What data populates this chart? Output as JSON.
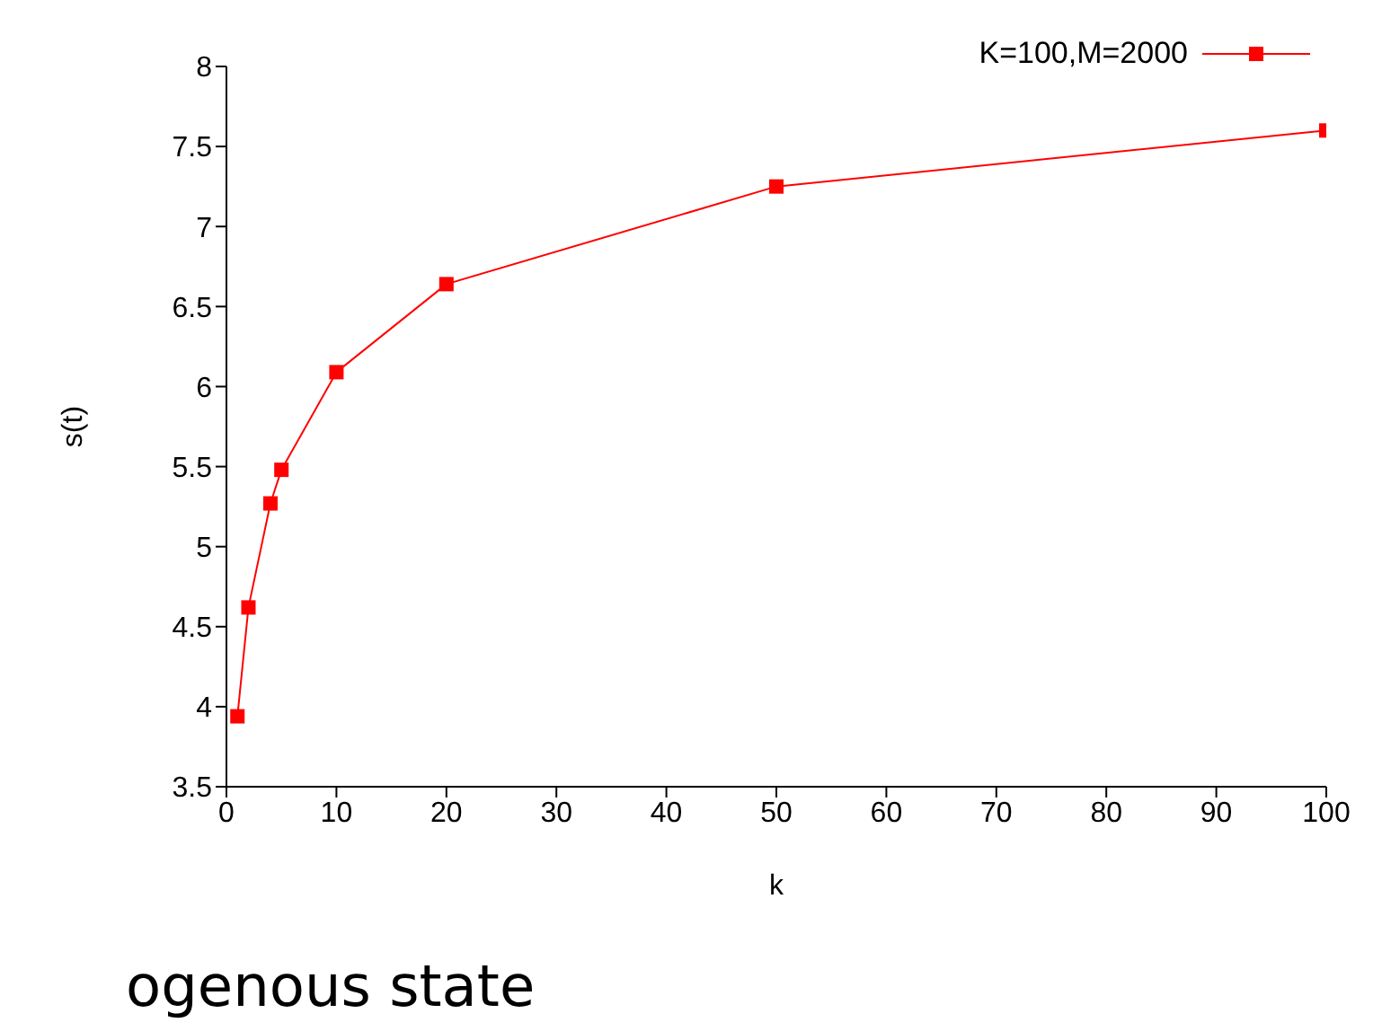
{
  "chart_data": {
    "type": "line",
    "xlabel": "k",
    "ylabel": "s(t)",
    "x": [
      1,
      2,
      4,
      5,
      10,
      20,
      50,
      100
    ],
    "series": [
      {
        "name": "K=100,M=2000",
        "color": "#ff0000",
        "values": [
          3.94,
          4.62,
          5.27,
          5.48,
          6.09,
          6.64,
          7.25,
          7.6
        ]
      }
    ],
    "xlim": [
      0,
      100
    ],
    "xticks": [
      0,
      10,
      20,
      30,
      40,
      50,
      60,
      70,
      80,
      90,
      100
    ],
    "ylim": [
      3.5,
      8
    ],
    "yticks": [
      3.5,
      4,
      4.5,
      5,
      5.5,
      6,
      6.5,
      7,
      7.5,
      8
    ],
    "grid": false,
    "legend": "top right",
    "marker": "square",
    "line_style": "solid",
    "annotations": [
      "ogenous state"
    ]
  }
}
